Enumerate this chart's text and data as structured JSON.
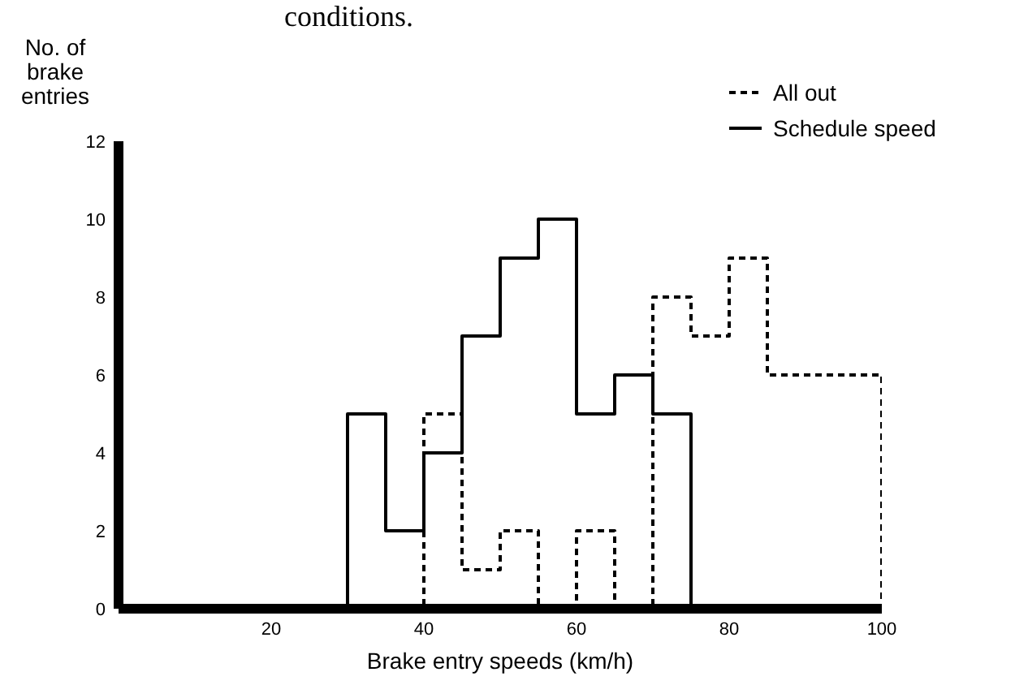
{
  "chart_data": {
    "type": "histogram",
    "xlabel": "Brake entry speeds (km/h)",
    "ylabel": "No. of brake entries",
    "annotations": [
      "conditions."
    ],
    "bins": [
      30,
      35,
      40,
      45,
      50,
      55,
      60,
      65,
      70,
      75,
      80,
      85,
      90,
      95,
      100
    ],
    "series": [
      {
        "name": "All out",
        "color": "#000000",
        "line_style": "dashed",
        "values": [
          0,
          0,
          5,
          1,
          2,
          0,
          2,
          0,
          8,
          7,
          9,
          6,
          6,
          6
        ]
      },
      {
        "name": "Schedule speed",
        "color": "#000000",
        "line_style": "solid",
        "values": [
          5,
          2,
          4,
          7,
          9,
          10,
          5,
          6,
          5,
          0,
          0,
          0,
          0,
          0
        ]
      }
    ],
    "xlim": [
      0,
      100
    ],
    "xticks": [
      20,
      40,
      60,
      80,
      100
    ],
    "ylim": [
      0,
      12
    ],
    "yticks": [
      0,
      2,
      4,
      6,
      8,
      10,
      12
    ],
    "grid": false,
    "legend": "top right"
  }
}
